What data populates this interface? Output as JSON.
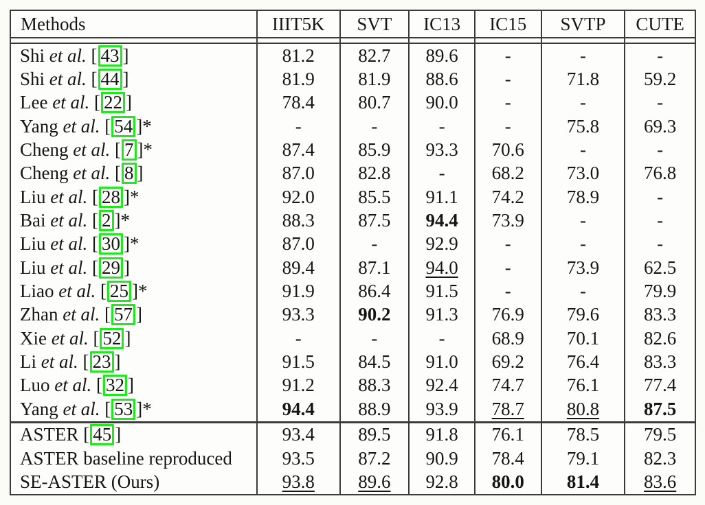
{
  "table": {
    "columns": [
      "Methods",
      "IIIT5K",
      "SVT",
      "IC13",
      "IC15",
      "SVTP",
      "CUTE"
    ],
    "etal_text": "et al.",
    "star_text": "*",
    "dash_text": "-",
    "citation_box_color": "#1fe81f",
    "rows": [
      {
        "name": "Shi",
        "etal": true,
        "cite": "43",
        "star": false,
        "group": 1,
        "values": [
          "81.2",
          "82.7",
          "89.6",
          "-",
          "-",
          "-"
        ],
        "styles": [
          "n",
          "n",
          "n",
          "n",
          "n",
          "n"
        ]
      },
      {
        "name": "Shi",
        "etal": true,
        "cite": "44",
        "star": false,
        "group": 1,
        "values": [
          "81.9",
          "81.9",
          "88.6",
          "-",
          "71.8",
          "59.2"
        ],
        "styles": [
          "n",
          "n",
          "n",
          "n",
          "n",
          "n"
        ]
      },
      {
        "name": "Lee",
        "etal": true,
        "cite": "22",
        "star": false,
        "group": 1,
        "values": [
          "78.4",
          "80.7",
          "90.0",
          "-",
          "-",
          "-"
        ],
        "styles": [
          "n",
          "n",
          "n",
          "n",
          "n",
          "n"
        ]
      },
      {
        "name": "Yang",
        "etal": true,
        "cite": "54",
        "star": true,
        "group": 1,
        "values": [
          "-",
          "-",
          "-",
          "-",
          "75.8",
          "69.3"
        ],
        "styles": [
          "n",
          "n",
          "n",
          "n",
          "n",
          "n"
        ]
      },
      {
        "name": "Cheng",
        "etal": true,
        "cite": "7",
        "star": true,
        "group": 1,
        "values": [
          "87.4",
          "85.9",
          "93.3",
          "70.6",
          "-",
          "-"
        ],
        "styles": [
          "n",
          "n",
          "n",
          "n",
          "n",
          "n"
        ]
      },
      {
        "name": "Cheng",
        "etal": true,
        "cite": "8",
        "star": false,
        "group": 1,
        "values": [
          "87.0",
          "82.8",
          "-",
          "68.2",
          "73.0",
          "76.8"
        ],
        "styles": [
          "n",
          "n",
          "n",
          "n",
          "n",
          "n"
        ]
      },
      {
        "name": "Liu",
        "etal": true,
        "cite": "28",
        "star": true,
        "group": 1,
        "values": [
          "92.0",
          "85.5",
          "91.1",
          "74.2",
          "78.9",
          "-"
        ],
        "styles": [
          "n",
          "n",
          "n",
          "n",
          "n",
          "n"
        ]
      },
      {
        "name": "Bai",
        "etal": true,
        "cite": "2",
        "star": true,
        "group": 1,
        "values": [
          "88.3",
          "87.5",
          "94.4",
          "73.9",
          "-",
          "-"
        ],
        "styles": [
          "n",
          "n",
          "b",
          "n",
          "n",
          "n"
        ]
      },
      {
        "name": "Liu",
        "etal": true,
        "cite": "30",
        "star": true,
        "group": 1,
        "values": [
          "87.0",
          "-",
          "92.9",
          "-",
          "-",
          "-"
        ],
        "styles": [
          "n",
          "n",
          "n",
          "n",
          "n",
          "n"
        ]
      },
      {
        "name": "Liu",
        "etal": true,
        "cite": "29",
        "star": false,
        "group": 1,
        "values": [
          "89.4",
          "87.1",
          "94.0",
          "-",
          "73.9",
          "62.5"
        ],
        "styles": [
          "n",
          "n",
          "u",
          "n",
          "n",
          "n"
        ]
      },
      {
        "name": "Liao",
        "etal": true,
        "cite": "25",
        "star": true,
        "group": 1,
        "values": [
          "91.9",
          "86.4",
          "91.5",
          "-",
          "-",
          "79.9"
        ],
        "styles": [
          "n",
          "n",
          "n",
          "n",
          "n",
          "n"
        ]
      },
      {
        "name": "Zhan",
        "etal": true,
        "cite": "57",
        "star": false,
        "group": 1,
        "values": [
          "93.3",
          "90.2",
          "91.3",
          "76.9",
          "79.6",
          "83.3"
        ],
        "styles": [
          "n",
          "b",
          "n",
          "n",
          "n",
          "n"
        ]
      },
      {
        "name": "Xie",
        "etal": true,
        "cite": "52",
        "star": false,
        "group": 1,
        "values": [
          "-",
          "-",
          "-",
          "68.9",
          "70.1",
          "82.6"
        ],
        "styles": [
          "n",
          "n",
          "n",
          "n",
          "n",
          "n"
        ]
      },
      {
        "name": "Li",
        "etal": true,
        "cite": "23",
        "star": false,
        "group": 1,
        "values": [
          "91.5",
          "84.5",
          "91.0",
          "69.2",
          "76.4",
          "83.3"
        ],
        "styles": [
          "n",
          "n",
          "n",
          "n",
          "n",
          "n"
        ]
      },
      {
        "name": "Luo",
        "etal": true,
        "cite": "32",
        "star": false,
        "group": 1,
        "values": [
          "91.2",
          "88.3",
          "92.4",
          "74.7",
          "76.1",
          "77.4"
        ],
        "styles": [
          "n",
          "n",
          "n",
          "n",
          "n",
          "n"
        ]
      },
      {
        "name": "Yang",
        "etal": true,
        "cite": "53",
        "star": true,
        "group": 1,
        "values": [
          "94.4",
          "88.9",
          "93.9",
          "78.7",
          "80.8",
          "87.5"
        ],
        "styles": [
          "b",
          "n",
          "n",
          "u",
          "u",
          "b"
        ]
      },
      {
        "name": "ASTER",
        "etal": false,
        "cite": "45",
        "star": false,
        "group": 2,
        "values": [
          "93.4",
          "89.5",
          "91.8",
          "76.1",
          "78.5",
          "79.5"
        ],
        "styles": [
          "n",
          "n",
          "n",
          "n",
          "n",
          "n"
        ]
      },
      {
        "name": "ASTER baseline reproduced",
        "etal": false,
        "cite": null,
        "star": false,
        "group": 2,
        "values": [
          "93.5",
          "87.2",
          "90.9",
          "78.4",
          "79.1",
          "82.3"
        ],
        "styles": [
          "n",
          "n",
          "n",
          "n",
          "n",
          "n"
        ]
      },
      {
        "name": "SE-ASTER (Ours)",
        "etal": false,
        "cite": null,
        "star": false,
        "group": 2,
        "values": [
          "93.8",
          "89.6",
          "92.8",
          "80.0",
          "81.4",
          "83.6"
        ],
        "styles": [
          "u",
          "u",
          "n",
          "b",
          "b",
          "u"
        ]
      }
    ]
  }
}
